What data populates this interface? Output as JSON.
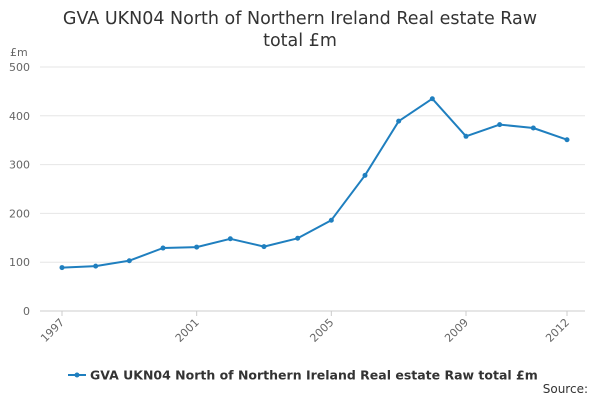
{
  "chart_data": {
    "type": "line",
    "title_lines": [
      "GVA UKN04 North of Northern Ireland Real estate Raw",
      "total £m"
    ],
    "unit_label": "£m",
    "x": [
      1997,
      1998,
      1999,
      2000,
      2001,
      2002,
      2003,
      2004,
      2005,
      2006,
      2007,
      2008,
      2009,
      2010,
      2011,
      2012
    ],
    "x_tick_labels": [
      "1997",
      "2001",
      "2005",
      "2009",
      "2012"
    ],
    "y_ticks": [
      0,
      100,
      200,
      300,
      400,
      500
    ],
    "ylim": [
      0,
      500
    ],
    "grid": "horizontal",
    "legend_position": "bottom",
    "series": [
      {
        "name": "GVA UKN04 North of Northern Ireland Real estate Raw total £m",
        "color": "#1f7fbf",
        "values": [
          89,
          92,
          103,
          129,
          131,
          148,
          132,
          149,
          186,
          278,
          389,
          435,
          358,
          382,
          375,
          351
        ]
      }
    ],
    "source_label": "Source:"
  }
}
